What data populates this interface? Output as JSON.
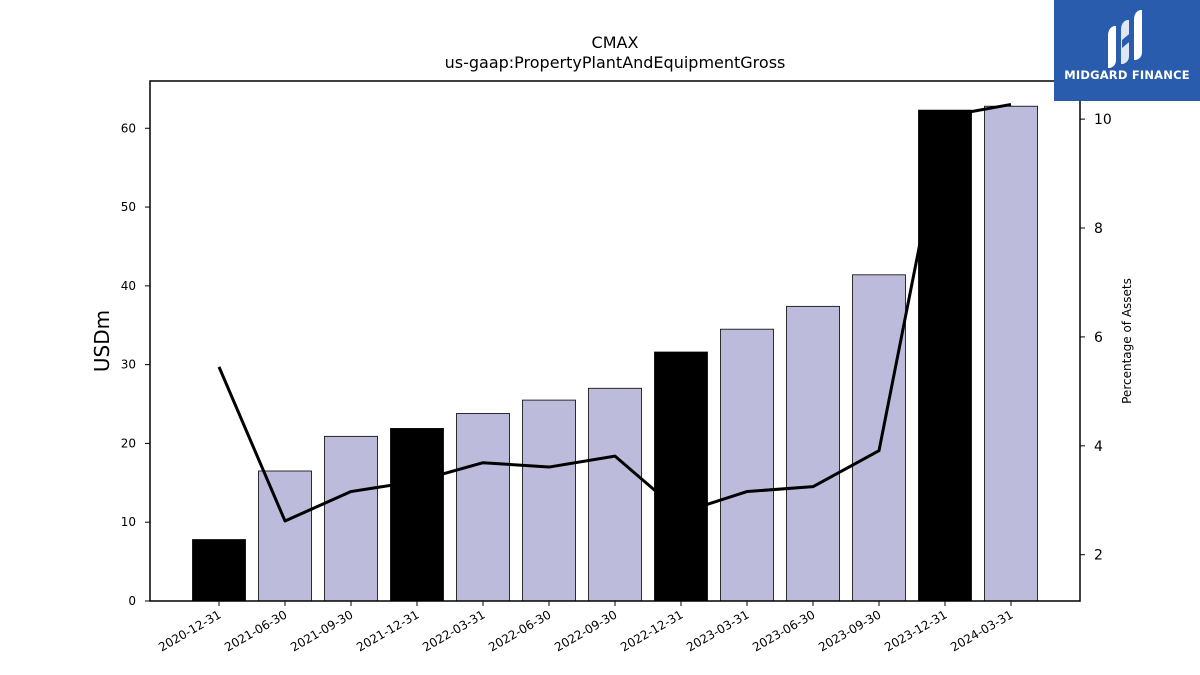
{
  "chart_data": {
    "type": "bar",
    "title": "CMAX",
    "subtitle": "us-gaap:PropertyPlantAndEquipmentGross",
    "ylabel": "USDm",
    "y2label": "Percentage of Assets",
    "categories": [
      "2020-12-31",
      "2021-06-30",
      "2021-09-30",
      "2021-12-31",
      "2022-03-31",
      "2022-06-30",
      "2022-09-30",
      "2022-12-31",
      "2023-03-31",
      "2023-06-30",
      "2023-09-30",
      "2023-12-31",
      "2024-03-31"
    ],
    "series": [
      {
        "values": [
          7.8,
          16.5,
          20.9,
          21.9,
          23.8,
          25.5,
          27.0,
          31.6,
          34.5,
          37.4,
          41.4,
          62.3,
          62.8
        ],
        "colors": [
          "#000000",
          "#bdbbdb",
          "#bdbbdb",
          "#000000",
          "#bdbbdb",
          "#bdbbdb",
          "#bdbbdb",
          "#000000",
          "#bdbbdb",
          "#bdbbdb",
          "#bdbbdb",
          "#000000",
          "#bdbbdb"
        ]
      },
      {
        "axis": "right",
        "type": "line",
        "color": "#000000",
        "values": [
          5.45,
          2.62,
          3.16,
          3.35,
          3.69,
          3.61,
          3.81,
          2.77,
          3.16,
          3.25,
          3.91,
          10.05,
          10.27
        ]
      }
    ],
    "ylim": [
      0,
      66
    ],
    "y2lim": [
      1.15,
      10.7
    ],
    "yticks": [
      0,
      10,
      20,
      30,
      40,
      50,
      60
    ],
    "y2ticks": [
      2,
      4,
      6,
      8,
      10
    ],
    "grid": false,
    "legend": "none"
  },
  "logo": {
    "text": "MIDGARD FINANCE",
    "background": "#2a5cad"
  }
}
